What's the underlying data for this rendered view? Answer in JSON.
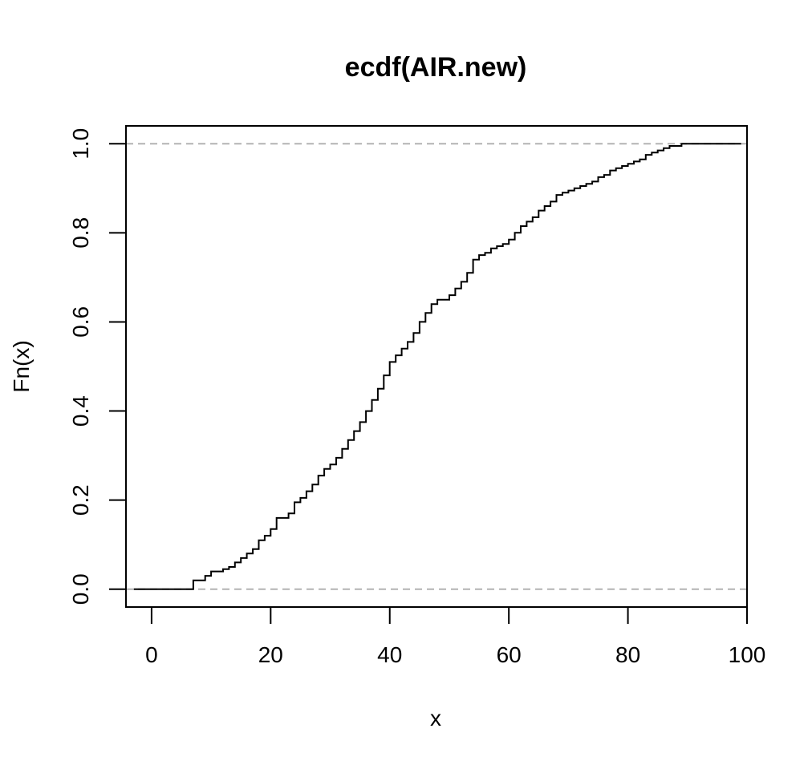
{
  "chart_data": {
    "type": "line",
    "title": "ecdf(AIR.new)",
    "xlabel": "x",
    "ylabel": "Fn(x)",
    "xlim": [
      -4.3,
      100
    ],
    "ylim": [
      -0.04,
      1.04
    ],
    "xticks": [
      0,
      20,
      40,
      60,
      80,
      100
    ],
    "xtick_labels": [
      "0",
      "20",
      "40",
      "60",
      "80",
      "100"
    ],
    "yticks": [
      0,
      0.2,
      0.4,
      0.6,
      0.8,
      1.0
    ],
    "ytick_labels": [
      "0.0",
      "0.2",
      "0.4",
      "0.6",
      "0.8",
      "1.0"
    ],
    "reference_lines": [
      0,
      1
    ],
    "reference_line_color": "#b3b3b3",
    "line_color": "#000000",
    "grid": false,
    "legend": "none",
    "series": [
      {
        "x": [
          -3,
          6,
          7,
          8,
          9,
          10,
          12,
          13,
          14,
          15,
          16,
          17,
          18,
          19,
          20,
          21,
          22,
          23,
          24,
          25,
          26,
          27,
          28,
          29,
          30,
          31,
          32,
          33,
          34,
          35,
          36,
          37,
          38,
          39,
          40,
          41,
          42,
          43,
          44,
          45,
          46,
          47,
          48,
          49,
          50,
          51,
          52,
          53,
          54,
          55,
          56,
          57,
          58,
          59,
          60,
          61,
          62,
          63,
          64,
          65,
          66,
          67,
          68,
          69,
          70,
          71,
          72,
          73,
          74,
          75,
          76,
          77,
          78,
          79,
          80,
          81,
          82,
          83,
          84,
          85,
          86,
          87,
          88,
          89,
          90,
          91,
          99
        ],
        "y": [
          0.0,
          0.0,
          0.02,
          0.02,
          0.03,
          0.04,
          0.045,
          0.05,
          0.06,
          0.07,
          0.08,
          0.09,
          0.11,
          0.12,
          0.135,
          0.16,
          0.16,
          0.17,
          0.195,
          0.205,
          0.22,
          0.235,
          0.255,
          0.27,
          0.28,
          0.295,
          0.315,
          0.335,
          0.355,
          0.375,
          0.4,
          0.425,
          0.45,
          0.48,
          0.51,
          0.525,
          0.54,
          0.555,
          0.575,
          0.6,
          0.62,
          0.64,
          0.65,
          0.65,
          0.66,
          0.675,
          0.69,
          0.71,
          0.74,
          0.75,
          0.755,
          0.765,
          0.77,
          0.775,
          0.785,
          0.8,
          0.815,
          0.825,
          0.835,
          0.85,
          0.86,
          0.87,
          0.885,
          0.89,
          0.895,
          0.9,
          0.905,
          0.91,
          0.915,
          0.925,
          0.93,
          0.94,
          0.945,
          0.95,
          0.955,
          0.96,
          0.965,
          0.975,
          0.98,
          0.985,
          0.99,
          0.995,
          0.995,
          1.0,
          1.0,
          1.0,
          1.0
        ]
      }
    ]
  }
}
